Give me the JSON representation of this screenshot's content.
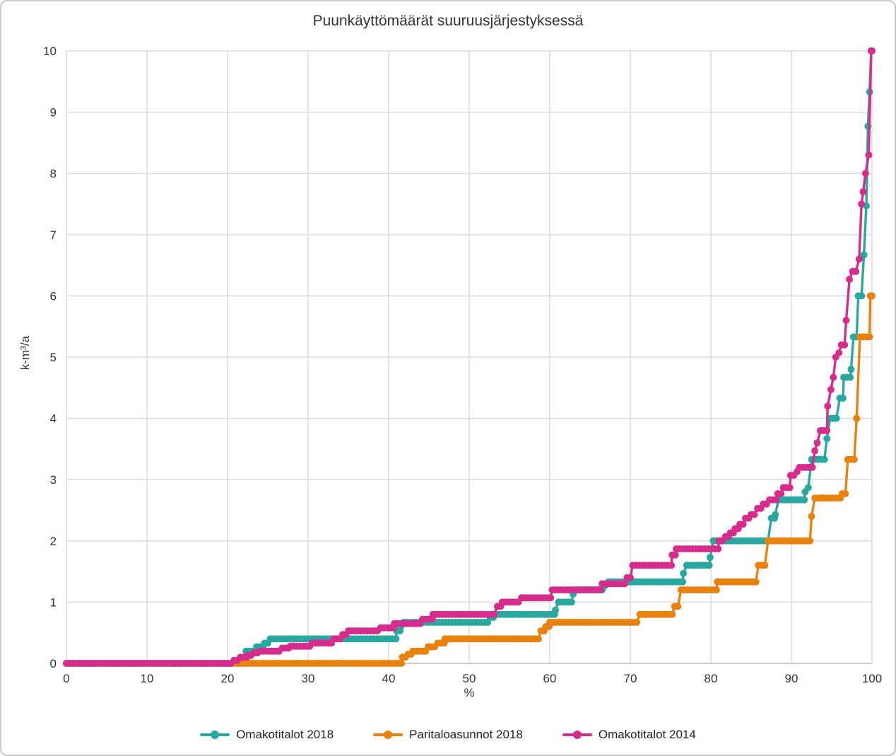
{
  "chart_data": {
    "type": "line",
    "title": "Puunkäyttömäärät suuruusjärjestyksessä",
    "xlabel": "%",
    "ylabel": "k-m³/a",
    "xlim": [
      0,
      100
    ],
    "ylim": [
      0,
      10
    ],
    "x_ticks": [
      0,
      10,
      20,
      30,
      40,
      50,
      60,
      70,
      80,
      90,
      100
    ],
    "y_ticks": [
      0,
      1,
      2,
      3,
      4,
      5,
      6,
      7,
      8,
      9,
      10
    ],
    "grid": true,
    "legend_position": "bottom",
    "marker": "circle",
    "steps_format": "each step is [percentile_%, value_k_m3_per_a]; value holds until next breakpoint",
    "colors": {
      "grid": "#D9D9D9",
      "axis": "#BFBFBF",
      "text": "#333333",
      "background": "#FFFFFF",
      "border": "#C9C9C9"
    },
    "series": [
      {
        "name": "Omakotitalot 2018",
        "color": "#29A8A0",
        "steps": [
          [
            0,
            0
          ],
          [
            22.3,
            0.2
          ],
          [
            23.6,
            0.27
          ],
          [
            24.6,
            0.33
          ],
          [
            25.3,
            0.4
          ],
          [
            41.0,
            0.53
          ],
          [
            41.5,
            0.6
          ],
          [
            41.9,
            0.67
          ],
          [
            52.6,
            0.75
          ],
          [
            53.4,
            0.8
          ],
          [
            60.7,
            0.87
          ],
          [
            61.1,
            1.0
          ],
          [
            62.9,
            1.13
          ],
          [
            63.3,
            1.2
          ],
          [
            66.9,
            1.27
          ],
          [
            67.3,
            1.33
          ],
          [
            76.6,
            1.47
          ],
          [
            77.0,
            1.6
          ],
          [
            79.9,
            1.73
          ],
          [
            80.3,
            2.0
          ],
          [
            87.5,
            2.37
          ],
          [
            88.0,
            2.43
          ],
          [
            88.4,
            2.67
          ],
          [
            91.7,
            2.8
          ],
          [
            92.1,
            2.87
          ],
          [
            92.5,
            3.33
          ],
          [
            94.4,
            3.67
          ],
          [
            94.8,
            4.0
          ],
          [
            96.0,
            4.33
          ],
          [
            96.5,
            4.67
          ],
          [
            97.4,
            4.8
          ],
          [
            97.7,
            5.33
          ],
          [
            98.3,
            6.0
          ],
          [
            99.0,
            6.67
          ],
          [
            99.3,
            7.47
          ],
          [
            99.5,
            8.77
          ],
          [
            99.7,
            9.33
          ],
          [
            99.9,
            10.0
          ],
          [
            100,
            10.0
          ]
        ]
      },
      {
        "name": "Paritaloasunnot 2018",
        "color": "#E8820E",
        "steps": [
          [
            0,
            0
          ],
          [
            41.7,
            0.1
          ],
          [
            42.4,
            0.15
          ],
          [
            43.0,
            0.2
          ],
          [
            44.9,
            0.27
          ],
          [
            46.1,
            0.33
          ],
          [
            47.0,
            0.4
          ],
          [
            58.9,
            0.53
          ],
          [
            59.5,
            0.6
          ],
          [
            60.0,
            0.67
          ],
          [
            71.2,
            0.8
          ],
          [
            75.5,
            0.93
          ],
          [
            76.3,
            1.2
          ],
          [
            80.8,
            1.33
          ],
          [
            85.9,
            1.6
          ],
          [
            87.1,
            2.0
          ],
          [
            92.5,
            2.4
          ],
          [
            92.9,
            2.7
          ],
          [
            96.3,
            2.77
          ],
          [
            97.0,
            3.33
          ],
          [
            98.1,
            4.0
          ],
          [
            98.5,
            5.33
          ],
          [
            99.8,
            6.0
          ],
          [
            100,
            6.0
          ]
        ]
      },
      {
        "name": "Omakotitalot 2014",
        "color": "#D62D8C",
        "steps": [
          [
            0,
            0
          ],
          [
            20.8,
            0.05
          ],
          [
            21.6,
            0.1
          ],
          [
            22.5,
            0.13
          ],
          [
            23.3,
            0.17
          ],
          [
            24.0,
            0.2
          ],
          [
            26.8,
            0.25
          ],
          [
            27.8,
            0.28
          ],
          [
            30.5,
            0.33
          ],
          [
            33.2,
            0.4
          ],
          [
            34.3,
            0.47
          ],
          [
            35.0,
            0.53
          ],
          [
            39.0,
            0.58
          ],
          [
            40.7,
            0.65
          ],
          [
            44.2,
            0.72
          ],
          [
            45.5,
            0.8
          ],
          [
            53.5,
            0.93
          ],
          [
            54.1,
            1.0
          ],
          [
            56.5,
            1.07
          ],
          [
            60.3,
            1.2
          ],
          [
            66.5,
            1.3
          ],
          [
            69.6,
            1.4
          ],
          [
            70.3,
            1.6
          ],
          [
            75.2,
            1.77
          ],
          [
            75.7,
            1.87
          ],
          [
            81.0,
            2.0
          ],
          [
            81.8,
            2.07
          ],
          [
            82.4,
            2.13
          ],
          [
            83.0,
            2.2
          ],
          [
            83.6,
            2.27
          ],
          [
            84.3,
            2.37
          ],
          [
            85.0,
            2.43
          ],
          [
            85.8,
            2.53
          ],
          [
            86.5,
            2.6
          ],
          [
            87.3,
            2.67
          ],
          [
            88.3,
            2.77
          ],
          [
            89.0,
            2.87
          ],
          [
            89.9,
            3.07
          ],
          [
            90.7,
            3.13
          ],
          [
            91.0,
            3.2
          ],
          [
            92.9,
            3.47
          ],
          [
            93.2,
            3.6
          ],
          [
            93.6,
            3.8
          ],
          [
            94.5,
            4.2
          ],
          [
            94.9,
            4.47
          ],
          [
            95.2,
            4.67
          ],
          [
            95.5,
            5.0
          ],
          [
            95.9,
            5.07
          ],
          [
            96.2,
            5.2
          ],
          [
            96.8,
            5.6
          ],
          [
            97.2,
            6.27
          ],
          [
            97.6,
            6.4
          ],
          [
            98.4,
            6.6
          ],
          [
            98.7,
            7.5
          ],
          [
            98.9,
            7.7
          ],
          [
            99.2,
            8.0
          ],
          [
            99.6,
            8.3
          ],
          [
            99.9,
            10.0
          ],
          [
            100,
            10.0
          ]
        ]
      }
    ]
  }
}
